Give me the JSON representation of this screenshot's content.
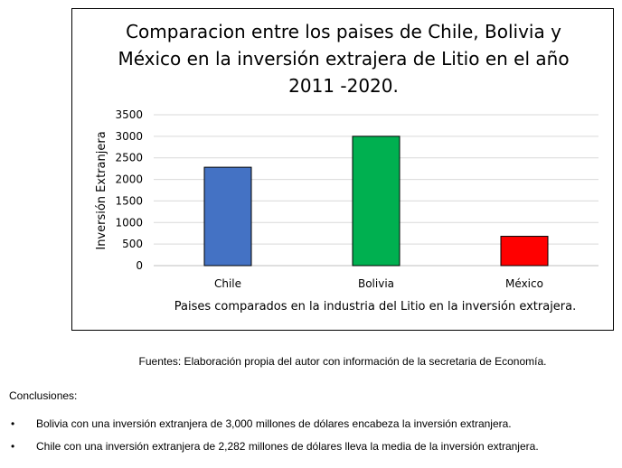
{
  "chart_data": {
    "type": "bar",
    "title_lines": [
      "Comparacion entre los paises de Chile, Bolivia y",
      "México en la inversión extrajera de Litio en el año",
      "2011 -2020."
    ],
    "xlabel": "Paises comparados en la industria del Litio en la inversión extrajera.",
    "ylabel": "Inversión Extranjera",
    "categories": [
      "Chile",
      "Bolivia",
      "México"
    ],
    "values": [
      2282,
      3000,
      680
    ],
    "colors": [
      "#4472c4",
      "#00b050",
      "#ff0000"
    ],
    "ylim": [
      0,
      3500
    ],
    "yticks": [
      "0",
      "500",
      "1000",
      "1500",
      "2000",
      "2500",
      "3000",
      "3500"
    ],
    "grid": true
  },
  "source_text": "Fuentes: Elaboración propia del autor con información de la secretaria de Economía.",
  "conclusions_label": "Conclusiones:",
  "bullet_glyph": "•",
  "conclusions": [
    "Bolivia con una inversión extranjera de 3,000 millones de dólares encabeza la inversión extranjera.",
    "Chile con una inversión extranjera de 2,282 millones de dólares lleva la media de la inversión extranjera."
  ]
}
